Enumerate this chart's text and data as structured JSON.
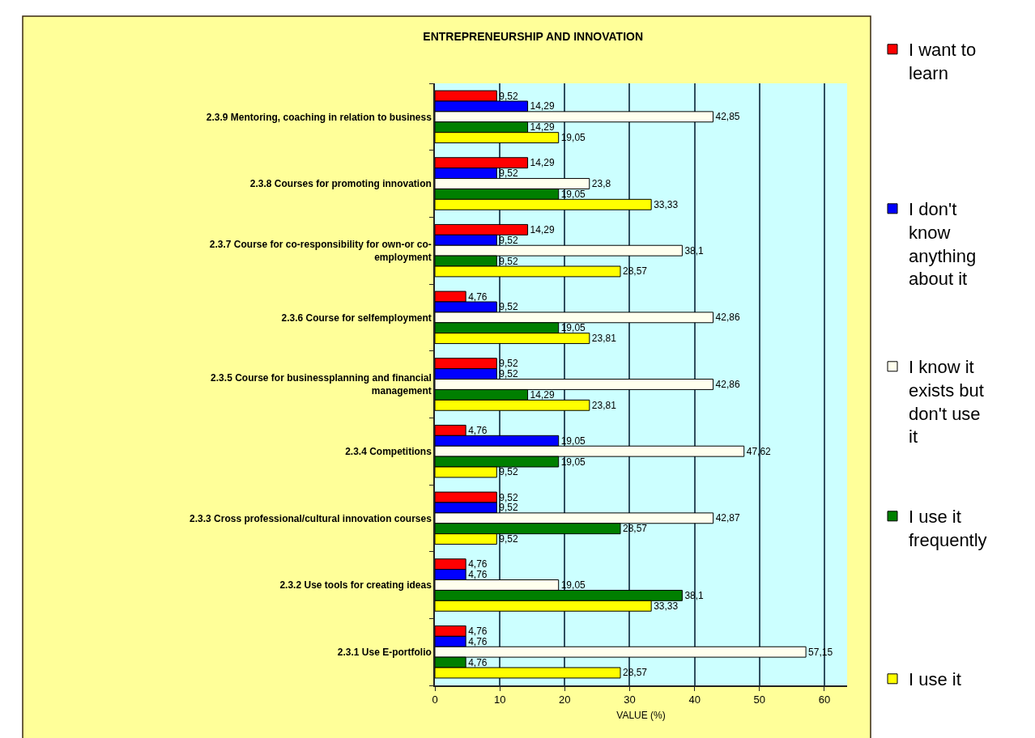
{
  "chart_data": {
    "type": "bar",
    "orientation": "horizontal",
    "title": "ENTREPRENEURSHIP AND INNOVATION",
    "xlabel": "VALUE (%)",
    "categories": [
      "2.3.9 Mentoring, coaching in relation to business",
      "2.3.8 Courses for promoting innovation",
      "2.3.7 Course for co-responsibility for own-or co-employment",
      "2.3.6 Course for selfemployment",
      "2.3.5 Course for businessplanning and financial management",
      "2.3.4 Competitions",
      "2.3.3 Cross professional/cultural innovation courses",
      "2.3.2 Use tools for creating ideas",
      "2.3.1 Use E-portfolio"
    ],
    "series": [
      {
        "name": "I want to learn",
        "color": "#ff0000",
        "values": [
          9.52,
          14.29,
          14.29,
          4.76,
          9.52,
          4.76,
          9.52,
          4.76,
          4.76
        ],
        "value_labels": [
          "9,52",
          "14,29",
          "14,29",
          "4,76",
          "9,52",
          "4,76",
          "9,52",
          "4,76",
          "4,76"
        ]
      },
      {
        "name": "I don't know anything about it",
        "color": "#0000ff",
        "values": [
          14.29,
          9.52,
          9.52,
          9.52,
          9.52,
          19.05,
          9.52,
          4.76,
          4.76
        ],
        "value_labels": [
          "14,29",
          "9,52",
          "9,52",
          "9,52",
          "9,52",
          "19,05",
          "9,52",
          "4,76",
          "4,76"
        ]
      },
      {
        "name": "I know it exists but don't use it",
        "color": "#ffffee",
        "values": [
          42.85,
          23.8,
          38.1,
          42.86,
          42.86,
          47.62,
          42.87,
          19.05,
          57.15
        ],
        "value_labels": [
          "42,85",
          "23,8",
          "38,1",
          "42,86",
          "42,86",
          "47,62",
          "42,87",
          "19,05",
          "57,15"
        ]
      },
      {
        "name": "I use it frequently",
        "color": "#007f00",
        "values": [
          14.29,
          19.05,
          9.52,
          19.05,
          14.29,
          19.05,
          28.57,
          38.1,
          4.76
        ],
        "value_labels": [
          "14,29",
          "19,05",
          "9,52",
          "19,05",
          "14,29",
          "19,05",
          "28,57",
          "38,1",
          "4,76"
        ]
      },
      {
        "name": "I use it",
        "color": "#ffff00",
        "values": [
          19.05,
          33.33,
          28.57,
          23.81,
          23.81,
          9.52,
          9.52,
          33.33,
          28.57
        ],
        "value_labels": [
          "19,05",
          "33,33",
          "28,57",
          "23,81",
          "23,81",
          "9,52",
          "9,52",
          "33,33",
          "28,57"
        ]
      }
    ],
    "xlim": [
      0,
      63.5
    ],
    "xticks": [
      0,
      10,
      20,
      30,
      40,
      50,
      60
    ],
    "grid": "x",
    "legend": "right"
  }
}
